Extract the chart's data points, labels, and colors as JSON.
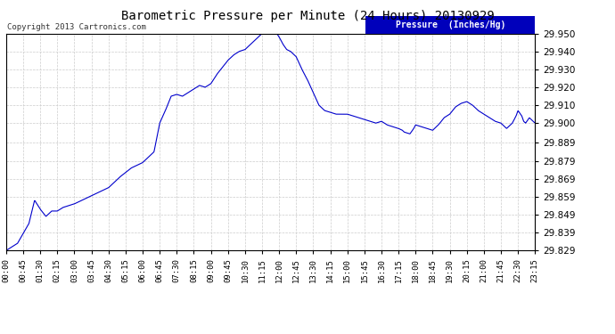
{
  "title": "Barometric Pressure per Minute (24 Hours) 20130929",
  "copyright": "Copyright 2013 Cartronics.com",
  "legend_label": "Pressure  (Inches/Hg)",
  "line_color": "#0000cc",
  "background_color": "#ffffff",
  "grid_color": "#cccccc",
  "ylim": [
    29.829,
    29.95
  ],
  "yticks": [
    29.829,
    29.839,
    29.849,
    29.859,
    29.869,
    29.879,
    29.889,
    29.9,
    29.91,
    29.92,
    29.93,
    29.94,
    29.95
  ],
  "xtick_labels": [
    "00:00",
    "00:45",
    "01:30",
    "02:15",
    "03:00",
    "03:45",
    "04:30",
    "05:15",
    "06:00",
    "06:45",
    "07:30",
    "08:15",
    "09:00",
    "09:45",
    "10:30",
    "11:15",
    "12:00",
    "12:45",
    "13:30",
    "14:15",
    "15:00",
    "15:45",
    "16:30",
    "17:15",
    "18:00",
    "18:45",
    "19:30",
    "20:15",
    "21:00",
    "21:45",
    "22:30",
    "23:15"
  ],
  "key_points": [
    [
      0,
      29.829
    ],
    [
      30,
      29.833
    ],
    [
      60,
      29.844
    ],
    [
      75,
      29.857
    ],
    [
      90,
      29.852
    ],
    [
      105,
      29.848
    ],
    [
      120,
      29.851
    ],
    [
      135,
      29.851
    ],
    [
      150,
      29.853
    ],
    [
      180,
      29.855
    ],
    [
      210,
      29.858
    ],
    [
      240,
      29.861
    ],
    [
      270,
      29.864
    ],
    [
      300,
      29.87
    ],
    [
      330,
      29.875
    ],
    [
      360,
      29.878
    ],
    [
      390,
      29.884
    ],
    [
      405,
      29.9
    ],
    [
      420,
      29.907
    ],
    [
      435,
      29.915
    ],
    [
      450,
      29.916
    ],
    [
      465,
      29.915
    ],
    [
      480,
      29.917
    ],
    [
      495,
      29.919
    ],
    [
      510,
      29.921
    ],
    [
      525,
      29.92
    ],
    [
      540,
      29.922
    ],
    [
      555,
      29.927
    ],
    [
      570,
      29.931
    ],
    [
      585,
      29.935
    ],
    [
      600,
      29.938
    ],
    [
      615,
      29.94
    ],
    [
      630,
      29.941
    ],
    [
      645,
      29.944
    ],
    [
      660,
      29.947
    ],
    [
      675,
      29.95
    ],
    [
      690,
      29.952
    ],
    [
      705,
      29.953
    ],
    [
      720,
      29.948
    ],
    [
      730,
      29.944
    ],
    [
      740,
      29.941
    ],
    [
      750,
      29.94
    ],
    [
      760,
      29.938
    ],
    [
      765,
      29.937
    ],
    [
      780,
      29.93
    ],
    [
      795,
      29.924
    ],
    [
      810,
      29.917
    ],
    [
      825,
      29.91
    ],
    [
      840,
      29.907
    ],
    [
      855,
      29.906
    ],
    [
      870,
      29.905
    ],
    [
      885,
      29.905
    ],
    [
      900,
      29.905
    ],
    [
      915,
      29.904
    ],
    [
      930,
      29.903
    ],
    [
      945,
      29.902
    ],
    [
      960,
      29.901
    ],
    [
      975,
      29.9
    ],
    [
      990,
      29.901
    ],
    [
      1005,
      29.899
    ],
    [
      1020,
      29.898
    ],
    [
      1035,
      29.897
    ],
    [
      1045,
      29.896
    ],
    [
      1050,
      29.895
    ],
    [
      1065,
      29.894
    ],
    [
      1075,
      29.897
    ],
    [
      1080,
      29.899
    ],
    [
      1095,
      29.898
    ],
    [
      1110,
      29.897
    ],
    [
      1125,
      29.896
    ],
    [
      1140,
      29.899
    ],
    [
      1155,
      29.903
    ],
    [
      1170,
      29.905
    ],
    [
      1185,
      29.909
    ],
    [
      1200,
      29.911
    ],
    [
      1215,
      29.912
    ],
    [
      1230,
      29.91
    ],
    [
      1245,
      29.907
    ],
    [
      1260,
      29.905
    ],
    [
      1275,
      29.903
    ],
    [
      1290,
      29.901
    ],
    [
      1305,
      29.9
    ],
    [
      1315,
      29.898
    ],
    [
      1320,
      29.897
    ],
    [
      1335,
      29.9
    ],
    [
      1345,
      29.904
    ],
    [
      1350,
      29.907
    ],
    [
      1360,
      29.904
    ],
    [
      1365,
      29.901
    ],
    [
      1370,
      29.9
    ],
    [
      1380,
      29.903
    ],
    [
      1395,
      29.9
    ]
  ]
}
